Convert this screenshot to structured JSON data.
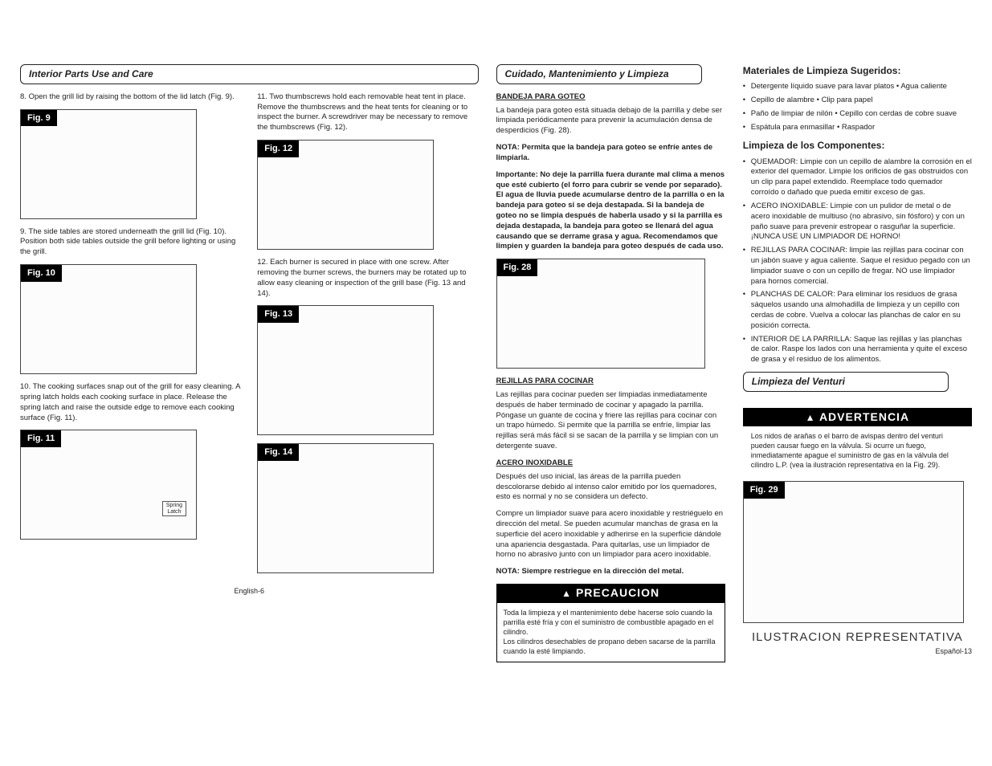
{
  "colors": {
    "text": "#222222",
    "bg": "#ffffff",
    "accent_black": "#000000",
    "accent_white": "#ffffff",
    "border": "#444444"
  },
  "typography": {
    "body_size_pt": 7,
    "title_size_pt": 9,
    "warn_size_pt": 11,
    "font_family": "Arial"
  },
  "left_page": {
    "section_title": "Interior Parts Use and Care",
    "items_left": [
      {
        "num": "8.",
        "text": "Open the grill lid by raising the bottom of the lid latch (Fig. 9).",
        "fig": "Fig. 9"
      },
      {
        "num": "9.",
        "text": "The side tables are stored underneath the grill lid (Fig. 10). Position both side tables outside the grill before lighting or using the grill.",
        "fig": "Fig. 10"
      },
      {
        "num": "10.",
        "text": "The cooking surfaces snap out of the grill for easy cleaning.  A spring latch holds each cooking surface in place.  Release the spring latch and raise the outside edge to remove each cooking surface (Fig. 11).",
        "fig": "Fig. 11",
        "note": "Spring\nLatch"
      }
    ],
    "items_right": [
      {
        "num": "11.",
        "text": "Two thumbscrews hold each removable heat tent in place.  Remove the thumbscrews and the heat tents for cleaning or to inspect the burner.  A screwdriver may be necessary to remove the thumbscrews (Fig. 12).",
        "fig": "Fig. 12"
      },
      {
        "num": "12.",
        "text": "Each burner is secured in place with one screw.  After removing the burner screws, the burners may be rotated up to allow easy cleaning or inspection of the grill base (Fig. 13 and 14).",
        "fig": "Fig. 13",
        "fig2": "Fig. 14"
      }
    ],
    "footer": "English-6"
  },
  "col3": {
    "section_title": "Cuidado, Mantenimiento y Limpieza",
    "bandeja_head": "BANDEJA PARA GOTEO",
    "bandeja_text": "La bandeja para goteo está situada debajo de la parrilla y debe ser limpiada periódicamente para prevenir la acumulación densa de desperdicios (Fig.  28).",
    "nota1": "NOTA: Permita que la bandeja para goteo se enfríe antes de limpiarla.",
    "importante": "Importante: No deje la parrilla fuera durante mal clima a menos que esté cubierto (el forro para cubrir se vende por separado). El agua de lluvia puede acumularse dentro de la parrilla o en la bandeja para goteo si se deja destapada.  Si la bandeja de goteo no se limpia después de haberla usado y si la parrilla es dejada destapada, la bandeja para goteo se llenará del agua causando que se derrame grasa y agua. Recomendamos que limpien y guarden la  bandeja para goteo después de cada uso.",
    "fig28": "Fig. 28",
    "rejillas_head": "REJILLAS PARA COCINAR",
    "rejillas_text": "Las rejillas para cocinar pueden ser limpiadas inmediatamente después de haber terminado de cocinar y apagado la parrilla. Póngase un guante de cocina y friere las rejillas para cocinar con un trapo húmedo. Si permite que la parrilla se enfríe, limpiar las rejillas será más fácil si se sacan de la parrilla y se limpian con un detergente suave.",
    "acero_head": "ACERO INOXIDABLE",
    "acero_text1": "Después del uso inicial, las áreas de la parrilla pueden descolorarse debido al intenso calor emitido por los quemadores, esto es normal y no se considera un defecto.",
    "acero_text2": "Compre un limpiador suave para acero inoxidable y restriéguelo en dirección del metal. Se pueden acumular manchas de grasa en la superficie del acero inoxidable y adherirse en la superficie dándole una apariencia desgastada. Para quitarlas, use un limpiador de horno no abrasivo junto con un limpiador para acero inoxidable.",
    "nota2": "NOTA: Siempre restriegue en la dirección del metal.",
    "precaucion_title": "PRECAUCION",
    "precaucion_text": "Toda la limpieza y el mantenimiento debe hacerse solo cuando la parrilla esté fría y con el suministro de combustible apagado en el cilindro.\nLos cilindros desechables de propano deben sacarse de la parrilla cuando la esté limpiando."
  },
  "col4": {
    "materials_title": "Materiales de Limpieza Sugeridos:",
    "materials": [
      "Detergente líquido suave para lavar platos   •   Agua caliente",
      "Cepillo de alambre   •   Clip para papel",
      "Paño de limpiar de nilón   •   Cepillo con cerdas de cobre suave",
      "Espátula para enmasillar    •   Raspador"
    ],
    "components_title": "Limpieza de los Componentes:",
    "components": [
      "QUEMADOR: Limpie con un cepillo de alambre la corrosión en el exterior del quemador.  Limpie los orificios de gas obstruidos con un clip para papel extendido. Reemplace todo quemador corroído o dañado que pueda emitir exceso de gas.",
      "ACERO INOXIDABLE: Limpie con un pulidor de metal o de acero inoxidable de multiuso (no abrasivo, sin fósforo) y con un paño suave para prevenir estropear o rasguñar la superficie. ¡NUNCA USE  UN LIMPIADOR DE HORNO!",
      "REJILLAS PARA COCINAR: limpie las rejillas para cocinar con un jabón suave y agua caliente. Saque el residuo pegado con un limpiador suave o con un cepillo de fregar. NO use limpiador para hornos comercial.",
      "PLANCHAS DE CALOR: Para eliminar los residuos de grasa sáquelos usando una almohadilla de limpieza y un cepillo con cerdas de cobre.  Vuelva a colocar las planchas de calor en su posición correcta.",
      "INTERIOR DE LA PARRILLA: Saque las rejillas y las planchas de calor.  Raspe los lados con una herramienta y quite el exceso de grasa y el residuo de los alimentos."
    ],
    "venturi_title": "Limpieza del Venturi",
    "advertencia_title": "ADVERTENCIA",
    "advertencia_text": "Los nidos de arañas o el barro de avispas dentro del venturi pueden causar fuego en la válvula. Si ocurre un fuego, inmediatamente apague el suministro de gas en la válvula del cilindro L.P. (vea la ilustración representativa en la Fig.  29).",
    "fig29": "Fig. 29",
    "rep_caption": "ILUSTRACION REPRESENTATIVA",
    "footer": "Español-13"
  }
}
